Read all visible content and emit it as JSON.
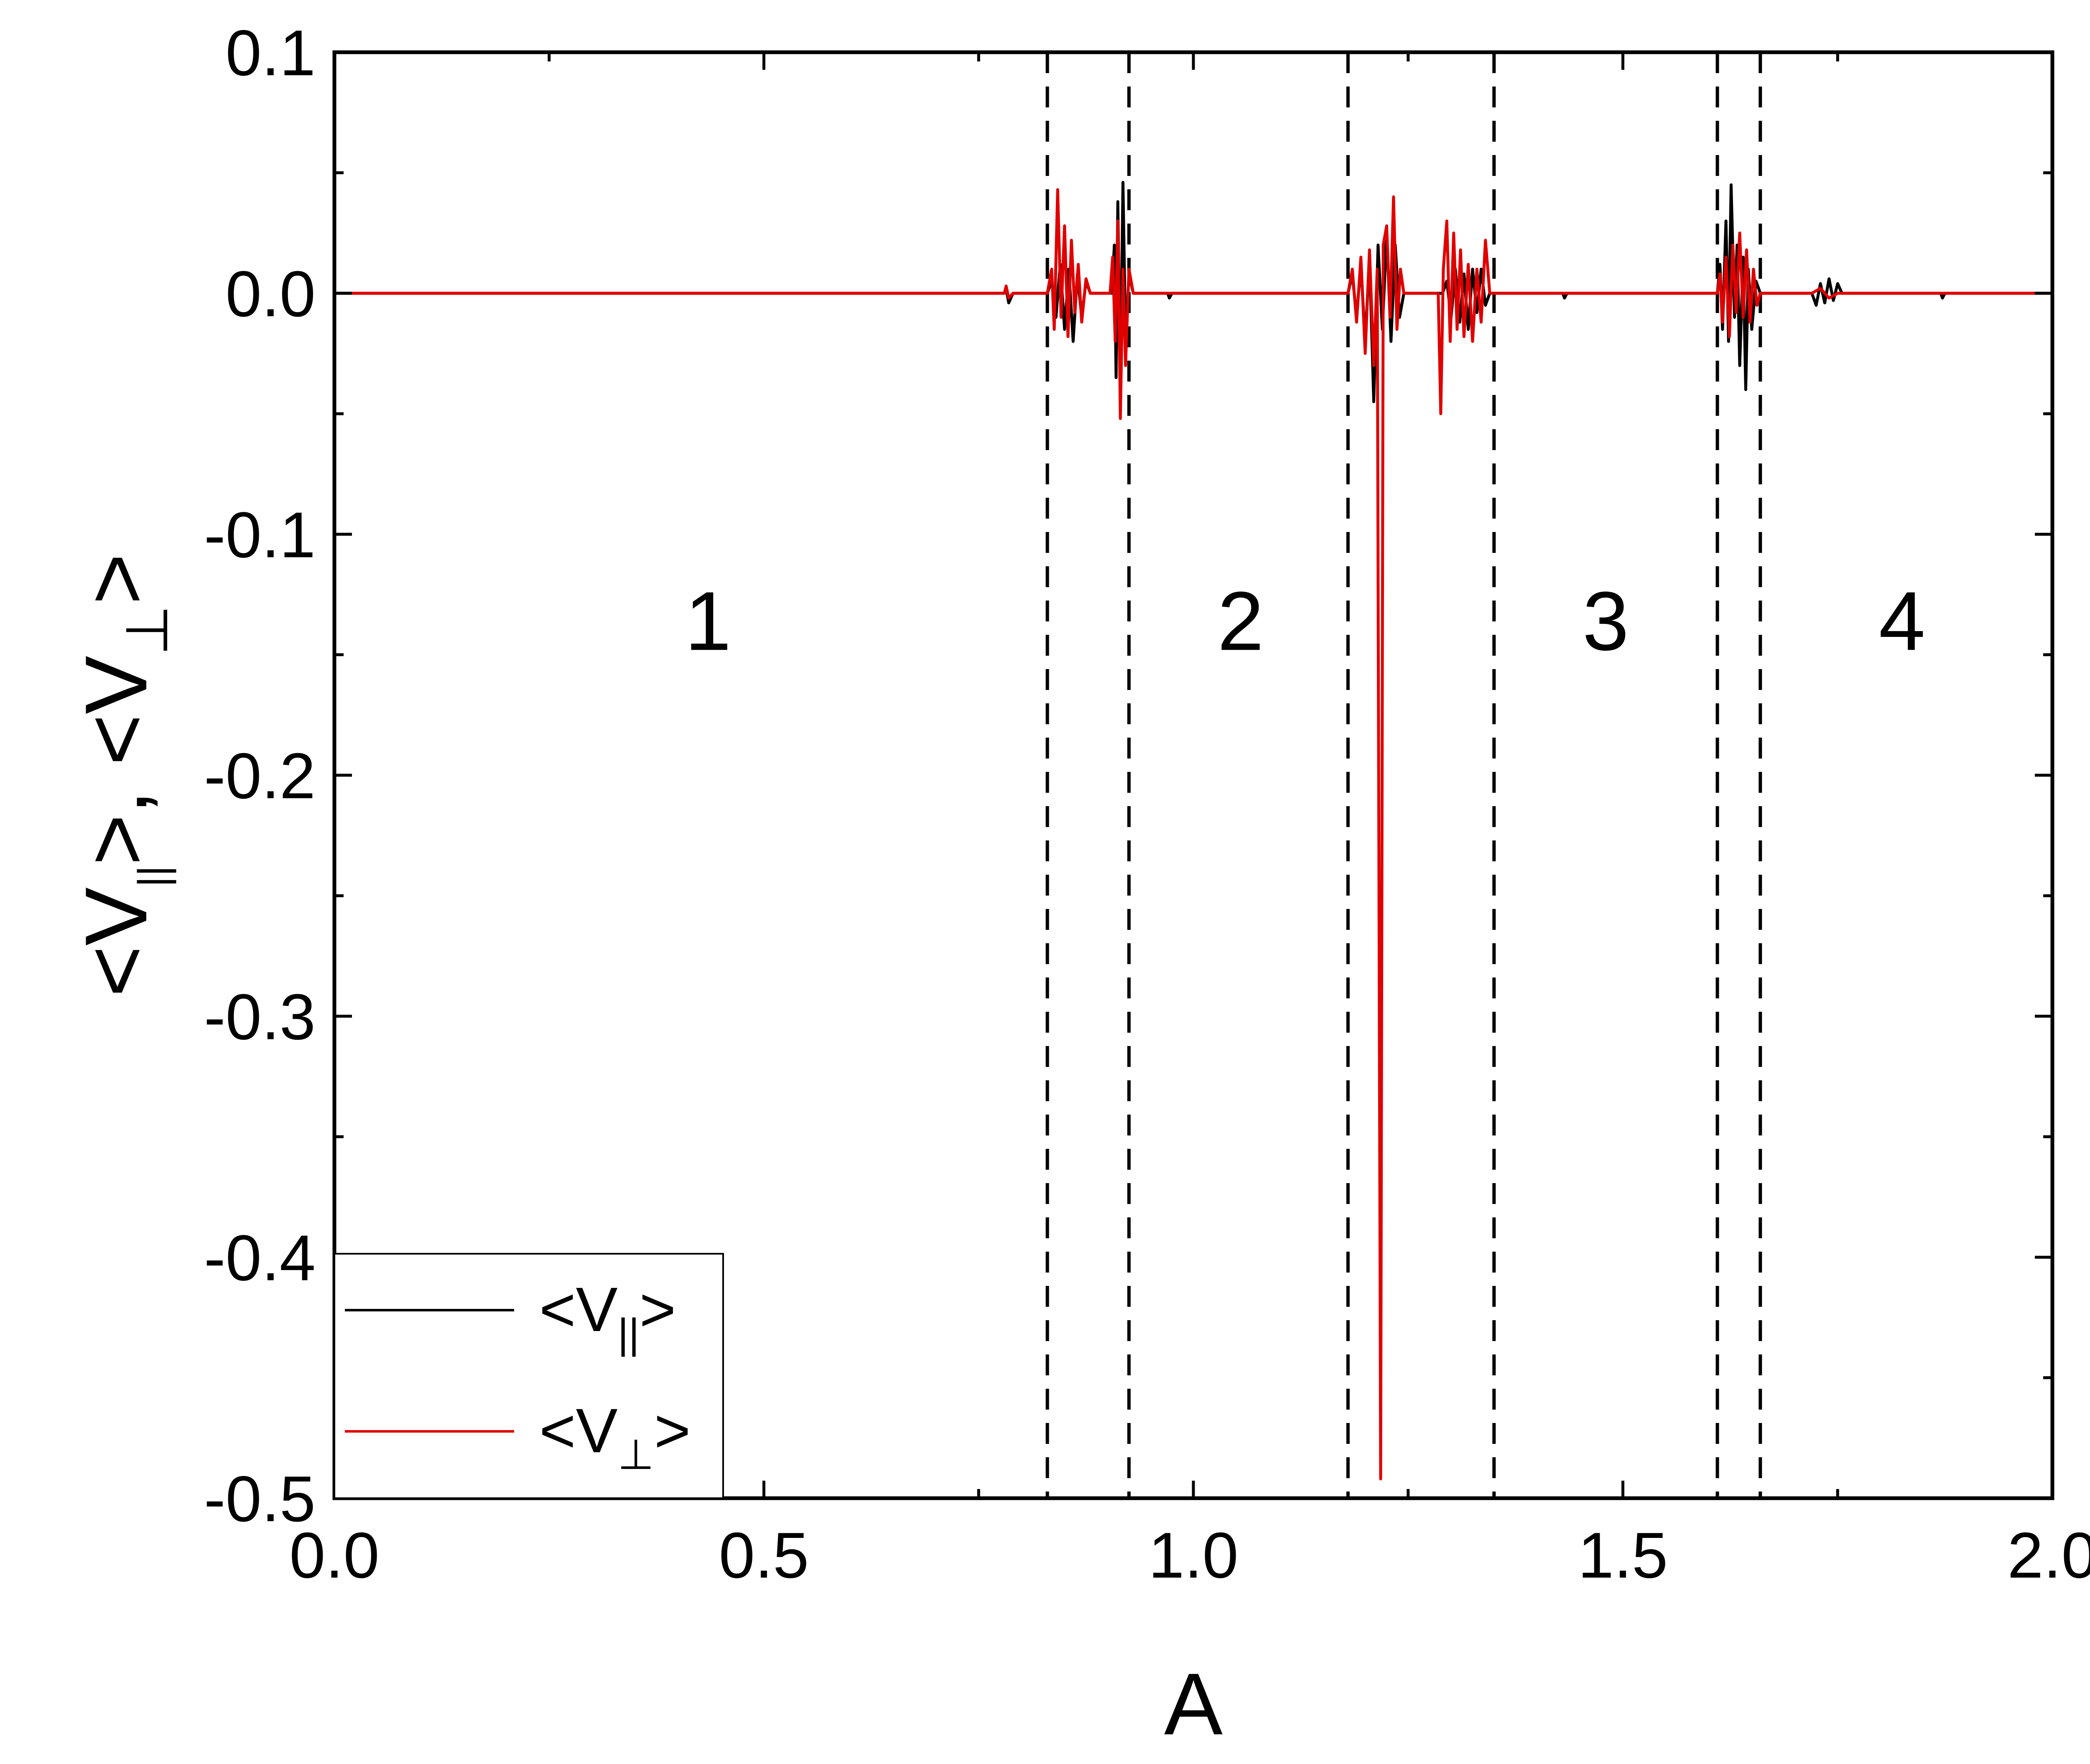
{
  "chart_data": {
    "type": "line",
    "title": "",
    "xlabel": "A",
    "ylabel": {
      "main": "<V",
      "sub1": "||",
      "mid": ">, <V",
      "sub2": "⊥",
      "end": ">"
    },
    "xlim": [
      0.0,
      2.0
    ],
    "ylim": [
      -0.5,
      0.1
    ],
    "xticks": [
      "0.0",
      "0.5",
      "1.0",
      "1.5",
      "2.0"
    ],
    "xtick_values": [
      0.0,
      0.5,
      1.0,
      1.5,
      2.0
    ],
    "yticks": [
      "0.1",
      "0.0",
      "-0.1",
      "-0.2",
      "-0.3",
      "-0.4",
      "-0.5"
    ],
    "ytick_values": [
      0.1,
      0.0,
      -0.1,
      -0.2,
      -0.3,
      -0.4,
      -0.5
    ],
    "grid": false,
    "legend_position": "bottom-left",
    "vlines": [
      0.83,
      0.925,
      1.18,
      1.35,
      1.61,
      1.66
    ],
    "region_labels": [
      {
        "text": "1",
        "x": 0.435,
        "y": -0.148
      },
      {
        "text": "2",
        "x": 1.055,
        "y": -0.148
      },
      {
        "text": "3",
        "x": 1.48,
        "y": -0.148
      },
      {
        "text": "4",
        "x": 1.825,
        "y": -0.148
      }
    ],
    "series": [
      {
        "name": "<V||>",
        "legend": {
          "pre": "<V",
          "sub": "||",
          "post": ">"
        },
        "color": "#000000",
        "points": [
          [
            0.0,
            0.0
          ],
          [
            0.78,
            0.0
          ],
          [
            0.782,
            0.002
          ],
          [
            0.785,
            -0.004
          ],
          [
            0.79,
            0.0
          ],
          [
            0.83,
            0.0
          ],
          [
            0.835,
            0.005
          ],
          [
            0.84,
            -0.01
          ],
          [
            0.845,
            0.012
          ],
          [
            0.85,
            -0.015
          ],
          [
            0.855,
            0.01
          ],
          [
            0.86,
            -0.02
          ],
          [
            0.865,
            0.008
          ],
          [
            0.87,
            -0.01
          ],
          [
            0.875,
            0.005
          ],
          [
            0.88,
            0.0
          ],
          [
            0.905,
            0.0
          ],
          [
            0.908,
            0.02
          ],
          [
            0.91,
            -0.035
          ],
          [
            0.912,
            0.038
          ],
          [
            0.915,
            -0.04
          ],
          [
            0.918,
            0.046
          ],
          [
            0.921,
            -0.02
          ],
          [
            0.925,
            0.008
          ],
          [
            0.93,
            0.0
          ],
          [
            0.97,
            0.0
          ],
          [
            0.972,
            -0.002
          ],
          [
            0.975,
            0.0
          ],
          [
            1.18,
            0.0
          ],
          [
            1.185,
            0.008
          ],
          [
            1.19,
            -0.01
          ],
          [
            1.195,
            0.012
          ],
          [
            1.2,
            -0.02
          ],
          [
            1.205,
            0.015
          ],
          [
            1.21,
            -0.045
          ],
          [
            1.215,
            0.02
          ],
          [
            1.22,
            -0.015
          ],
          [
            1.225,
            0.025
          ],
          [
            1.23,
            -0.02
          ],
          [
            1.235,
            0.02
          ],
          [
            1.24,
            -0.01
          ],
          [
            1.245,
            0.0
          ],
          [
            1.29,
            0.0
          ],
          [
            1.295,
            0.005
          ],
          [
            1.3,
            -0.01
          ],
          [
            1.305,
            0.01
          ],
          [
            1.31,
            -0.012
          ],
          [
            1.315,
            0.008
          ],
          [
            1.32,
            -0.015
          ],
          [
            1.325,
            0.01
          ],
          [
            1.33,
            -0.008
          ],
          [
            1.335,
            0.01
          ],
          [
            1.34,
            -0.005
          ],
          [
            1.345,
            0.0
          ],
          [
            1.43,
            0.0
          ],
          [
            1.432,
            -0.002
          ],
          [
            1.435,
            0.0
          ],
          [
            1.61,
            0.0
          ],
          [
            1.613,
            0.012
          ],
          [
            1.616,
            -0.015
          ],
          [
            1.62,
            0.03
          ],
          [
            1.623,
            -0.02
          ],
          [
            1.626,
            0.045
          ],
          [
            1.63,
            -0.01
          ],
          [
            1.633,
            0.02
          ],
          [
            1.636,
            -0.03
          ],
          [
            1.64,
            0.015
          ],
          [
            1.643,
            -0.04
          ],
          [
            1.646,
            0.01
          ],
          [
            1.65,
            -0.015
          ],
          [
            1.655,
            0.005
          ],
          [
            1.66,
            0.0
          ],
          [
            1.72,
            0.0
          ],
          [
            1.725,
            -0.005
          ],
          [
            1.73,
            0.004
          ],
          [
            1.735,
            -0.004
          ],
          [
            1.74,
            0.006
          ],
          [
            1.745,
            -0.003
          ],
          [
            1.75,
            0.004
          ],
          [
            1.755,
            0.0
          ],
          [
            1.87,
            0.0
          ],
          [
            1.872,
            -0.002
          ],
          [
            1.875,
            0.0
          ],
          [
            2.0,
            0.0
          ]
        ]
      },
      {
        "name": "<V⊥>",
        "legend": {
          "pre": "<V",
          "sub": "⊥",
          "post": ">"
        },
        "color": "#e00000",
        "points": [
          [
            0.0,
            0.0
          ],
          [
            0.78,
            0.0
          ],
          [
            0.782,
            0.003
          ],
          [
            0.785,
            -0.002
          ],
          [
            0.79,
            0.0
          ],
          [
            0.83,
            0.0
          ],
          [
            0.835,
            0.01
          ],
          [
            0.838,
            -0.015
          ],
          [
            0.842,
            0.043
          ],
          [
            0.846,
            -0.01
          ],
          [
            0.85,
            0.028
          ],
          [
            0.854,
            -0.018
          ],
          [
            0.858,
            0.022
          ],
          [
            0.862,
            -0.008
          ],
          [
            0.866,
            0.012
          ],
          [
            0.87,
            -0.012
          ],
          [
            0.875,
            0.006
          ],
          [
            0.88,
            0.0
          ],
          [
            0.903,
            0.0
          ],
          [
            0.906,
            0.015
          ],
          [
            0.909,
            -0.02
          ],
          [
            0.912,
            0.03
          ],
          [
            0.915,
            -0.052
          ],
          [
            0.918,
            0.01
          ],
          [
            0.921,
            -0.03
          ],
          [
            0.925,
            0.01
          ],
          [
            0.93,
            0.0
          ],
          [
            1.18,
            0.0
          ],
          [
            1.185,
            0.01
          ],
          [
            1.19,
            -0.012
          ],
          [
            1.195,
            0.015
          ],
          [
            1.2,
            -0.025
          ],
          [
            1.205,
            0.018
          ],
          [
            1.21,
            -0.03
          ],
          [
            1.214,
            0.01
          ],
          [
            1.218,
            -0.492
          ],
          [
            1.221,
            0.02
          ],
          [
            1.225,
            0.028
          ],
          [
            1.229,
            -0.01
          ],
          [
            1.233,
            0.04
          ],
          [
            1.237,
            -0.015
          ],
          [
            1.241,
            0.01
          ],
          [
            1.245,
            0.0
          ],
          [
            1.285,
            0.0
          ],
          [
            1.288,
            -0.05
          ],
          [
            1.291,
            0.01
          ],
          [
            1.295,
            0.03
          ],
          [
            1.299,
            -0.02
          ],
          [
            1.303,
            0.025
          ],
          [
            1.307,
            -0.015
          ],
          [
            1.311,
            0.018
          ],
          [
            1.315,
            -0.018
          ],
          [
            1.32,
            0.012
          ],
          [
            1.325,
            -0.02
          ],
          [
            1.33,
            0.01
          ],
          [
            1.335,
            -0.012
          ],
          [
            1.34,
            0.022
          ],
          [
            1.345,
            0.0
          ],
          [
            1.61,
            0.0
          ],
          [
            1.613,
            0.008
          ],
          [
            1.616,
            -0.012
          ],
          [
            1.62,
            0.015
          ],
          [
            1.624,
            -0.018
          ],
          [
            1.628,
            0.02
          ],
          [
            1.632,
            -0.008
          ],
          [
            1.636,
            0.025
          ],
          [
            1.64,
            -0.01
          ],
          [
            1.644,
            0.018
          ],
          [
            1.648,
            -0.012
          ],
          [
            1.652,
            0.01
          ],
          [
            1.656,
            -0.005
          ],
          [
            1.66,
            0.0
          ],
          [
            1.72,
            0.0
          ],
          [
            1.73,
            0.002
          ],
          [
            1.74,
            -0.002
          ],
          [
            1.75,
            0.0
          ],
          [
            2.0,
            0.0
          ]
        ]
      }
    ]
  }
}
